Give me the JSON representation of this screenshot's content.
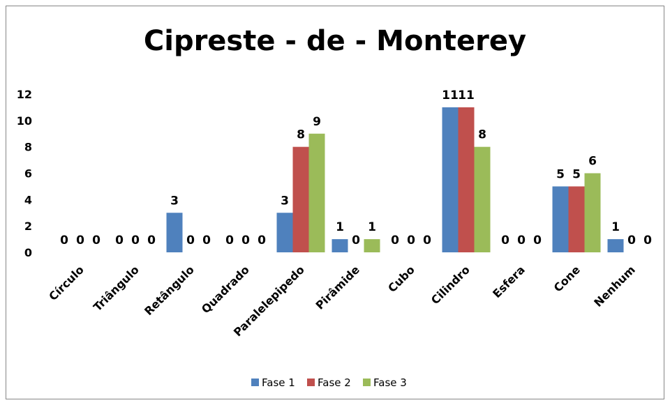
{
  "chart_data": {
    "type": "bar",
    "title": "Cipreste - de - Monterey",
    "categories": [
      "Círculo",
      "Triângulo",
      "Retângulo",
      "Quadrado",
      "Paralelepipedo",
      "Pirâmide",
      "Cubo",
      "Cilindro",
      "Esfera",
      "Cone",
      "Nenhum"
    ],
    "series": [
      {
        "name": "Fase 1",
        "color": "#4f81bd",
        "values": [
          0,
          0,
          3,
          0,
          3,
          1,
          0,
          11,
          0,
          5,
          1
        ]
      },
      {
        "name": "Fase 2",
        "color": "#c0504d",
        "values": [
          0,
          0,
          0,
          0,
          8,
          0,
          0,
          11,
          0,
          5,
          0
        ]
      },
      {
        "name": "Fase 3",
        "color": "#9bbb59",
        "values": [
          0,
          0,
          0,
          0,
          9,
          1,
          0,
          8,
          0,
          6,
          0
        ]
      }
    ],
    "ylim": [
      0,
      12
    ],
    "yticks": [
      0,
      2,
      4,
      6,
      8,
      10,
      12
    ],
    "grid": false,
    "legend": "bottom"
  }
}
